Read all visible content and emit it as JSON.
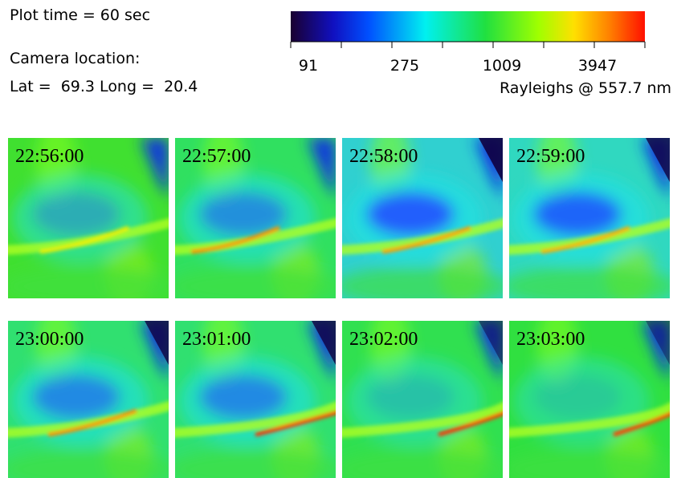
{
  "header": {
    "plot_time": "Plot time = 60 sec",
    "camera_label": "Camera location:",
    "location": "Lat =  69.3 Long =  20.4"
  },
  "colorbar": {
    "ticks": [
      "91",
      "275",
      "1009",
      "3947"
    ],
    "unit_label": "Rayleighs @ 557.7 nm"
  },
  "panels": [
    {
      "time": "22:56:00"
    },
    {
      "time": "22:57:00"
    },
    {
      "time": "22:58:00"
    },
    {
      "time": "22:59:00"
    },
    {
      "time": "23:00:00"
    },
    {
      "time": "23:01:00"
    },
    {
      "time": "23:02:00"
    },
    {
      "time": "23:03:00"
    }
  ]
}
